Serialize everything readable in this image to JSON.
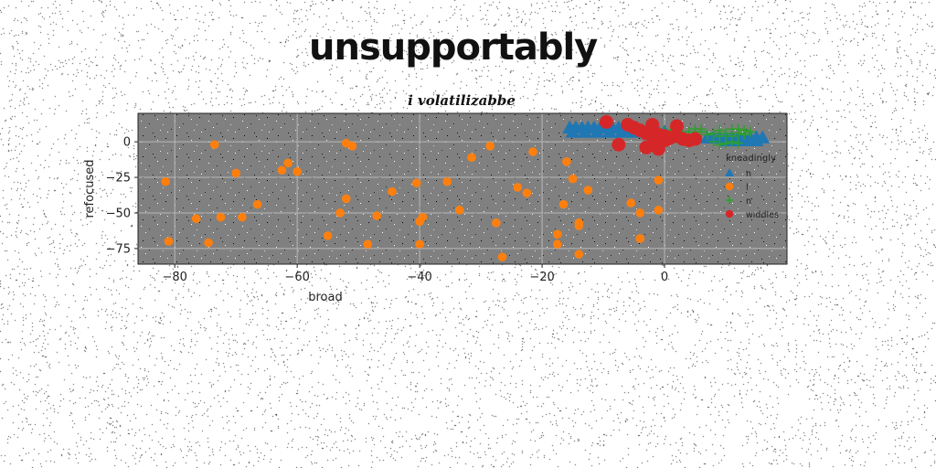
{
  "page": {
    "title": "unsupportably"
  },
  "chart_data": {
    "type": "scatter",
    "title": "i volatilizabbe",
    "xlabel": "broad",
    "ylabel": "refocused",
    "xlim": [
      -86,
      20
    ],
    "ylim": [
      -86,
      20
    ],
    "xticks": [
      -80,
      -60,
      -40,
      -20,
      0
    ],
    "yticks": [
      0,
      -25,
      -50,
      -75
    ],
    "grid": true,
    "plot_background": "#808080",
    "legend": {
      "title": "kneadingly",
      "placement": "right"
    },
    "series": [
      {
        "name": "n",
        "marker": "triangle",
        "color": "#1f77b4",
        "points": [
          [
            -15.5,
            10
          ],
          [
            -14.5,
            10
          ],
          [
            -13.5,
            10
          ],
          [
            -12.5,
            10
          ],
          [
            -11.5,
            10
          ],
          [
            -10.5,
            10
          ],
          [
            -9.5,
            10
          ],
          [
            -8.5,
            10
          ],
          [
            -7.5,
            10
          ],
          [
            -6.5,
            9
          ],
          [
            -15,
            7
          ],
          [
            -13,
            7
          ],
          [
            -11,
            7
          ],
          [
            -9,
            7
          ],
          [
            -7,
            7
          ],
          [
            -5,
            7
          ],
          [
            -3,
            7
          ],
          [
            -1,
            7
          ],
          [
            0,
            7
          ],
          [
            7,
            3
          ],
          [
            8,
            3
          ],
          [
            9,
            3
          ],
          [
            10,
            3
          ],
          [
            11,
            3
          ],
          [
            12,
            3
          ],
          [
            13,
            3
          ],
          [
            14,
            3
          ],
          [
            15,
            3
          ],
          [
            16,
            3
          ],
          [
            10,
            1
          ],
          [
            11,
            1
          ],
          [
            12,
            1
          ],
          [
            13,
            1
          ],
          [
            14,
            1
          ],
          [
            15,
            1
          ]
        ]
      },
      {
        "name": "l",
        "marker": "circle",
        "color": "#ff7f0e",
        "points": [
          [
            -81.5,
            -28
          ],
          [
            -81,
            -70
          ],
          [
            -74.5,
            -71
          ],
          [
            -73.5,
            -2
          ],
          [
            -72.5,
            -53
          ],
          [
            -76.5,
            -54
          ],
          [
            -70,
            -22
          ],
          [
            -69,
            -53
          ],
          [
            -66.5,
            -44
          ],
          [
            -62.5,
            -20
          ],
          [
            -61.5,
            -15
          ],
          [
            -60,
            -21
          ],
          [
            -55,
            -66
          ],
          [
            -53,
            -50
          ],
          [
            -52,
            -40
          ],
          [
            -52,
            -1
          ],
          [
            -51,
            -3
          ],
          [
            -48.5,
            -72
          ],
          [
            -47,
            -52
          ],
          [
            -44.5,
            -35
          ],
          [
            -40.5,
            -29
          ],
          [
            -40,
            -72
          ],
          [
            -39.5,
            -53
          ],
          [
            -40,
            -56
          ],
          [
            -35.5,
            -28
          ],
          [
            -33.5,
            -48
          ],
          [
            -31.5,
            -11
          ],
          [
            -28.5,
            -3
          ],
          [
            -27.5,
            -57
          ],
          [
            -26.5,
            -81
          ],
          [
            -24,
            -32
          ],
          [
            -22.5,
            -36
          ],
          [
            -21.5,
            -7
          ],
          [
            -17.5,
            -65
          ],
          [
            -17.5,
            -72
          ],
          [
            -16.5,
            -44
          ],
          [
            -16,
            -14
          ],
          [
            -15,
            -26
          ],
          [
            -14,
            -57
          ],
          [
            -14,
            -59
          ],
          [
            -14,
            -79
          ],
          [
            -12.5,
            -34
          ],
          [
            -5.5,
            -43
          ],
          [
            -4,
            -50
          ],
          [
            -4,
            -68
          ],
          [
            -1,
            -48
          ],
          [
            -1,
            -27
          ]
        ]
      },
      {
        "name": "n",
        "marker": "plus",
        "color": "#2ca02c",
        "points": [
          [
            0,
            7
          ],
          [
            1,
            8
          ],
          [
            2,
            7
          ],
          [
            3,
            5
          ],
          [
            4,
            7
          ],
          [
            5,
            5
          ],
          [
            6,
            7
          ],
          [
            7,
            5
          ],
          [
            8,
            6
          ],
          [
            9,
            4
          ],
          [
            10,
            6
          ],
          [
            11,
            4
          ],
          [
            12,
            6
          ],
          [
            13,
            5
          ],
          [
            14,
            7
          ],
          [
            5,
            9
          ],
          [
            6,
            9
          ],
          [
            9,
            8
          ],
          [
            11,
            9
          ],
          [
            12,
            9
          ],
          [
            13,
            8
          ],
          [
            10,
            -1
          ],
          [
            11,
            0
          ],
          [
            12,
            -1
          ],
          [
            8,
            0
          ],
          [
            9,
            -2
          ],
          [
            4,
            2
          ]
        ]
      },
      {
        "name": "widdles",
        "marker": "circle",
        "color": "#d62728",
        "points": [
          [
            -9.5,
            14
          ],
          [
            -6,
            12
          ],
          [
            -5,
            10
          ],
          [
            -4,
            8
          ],
          [
            -3,
            6
          ],
          [
            -2,
            5
          ],
          [
            -2,
            12
          ],
          [
            -1,
            5
          ],
          [
            0,
            4
          ],
          [
            1,
            3
          ],
          [
            2,
            4
          ],
          [
            2,
            11
          ],
          [
            3,
            2
          ],
          [
            4,
            1
          ],
          [
            5,
            2
          ],
          [
            -7.5,
            -2
          ],
          [
            -2,
            -2
          ],
          [
            -1,
            -5
          ],
          [
            -3,
            -4
          ],
          [
            0,
            1
          ],
          [
            0.5,
            2
          ],
          [
            -1,
            0
          ]
        ]
      }
    ]
  }
}
